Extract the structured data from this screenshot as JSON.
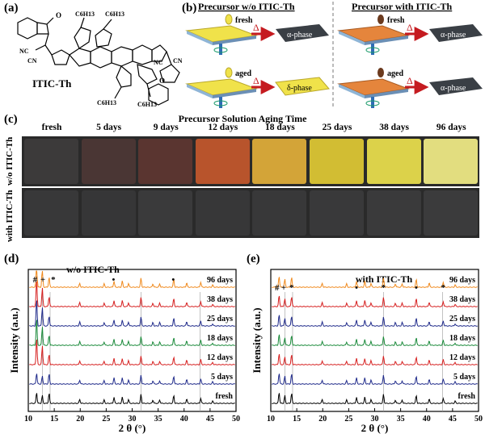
{
  "panels": {
    "a": "(a)",
    "b": "(b)",
    "c": "(c)",
    "d": "(d)",
    "e": "(e)"
  },
  "molecule": {
    "name": "ITIC-Th",
    "sub_labels": [
      "C6H13",
      "C6H13",
      "C6H13",
      "C6H13"
    ],
    "end_groups": [
      "NC",
      "CN"
    ]
  },
  "schematic": {
    "left_header": "Precursor w/o ITIC-Th",
    "right_header": "Precursor with ITIC-Th",
    "fresh": "fresh",
    "aged": "aged",
    "delta": "Δ",
    "results_left": [
      "α-phase",
      "δ-phase"
    ],
    "results_right": [
      "α-phase",
      "α-phase"
    ],
    "colors": {
      "yellow_film": "#f0e24a",
      "orange_film": "#e5853c",
      "alpha_dark": "#3a3f45",
      "delta_yellow": "#f0e24a",
      "arrow_red": "#c51b20",
      "spin_blue": "#2f6cb5"
    }
  },
  "aging": {
    "title": "Precursor Solution Aging Time",
    "days": [
      "fresh",
      "5 days",
      "9 days",
      "12 days",
      "18 days",
      "25 days",
      "38 days",
      "96 days"
    ],
    "row_labels": [
      "w/o ITIC-Th",
      "with ITIC-Th"
    ],
    "top_colors": [
      "#3c3a3a",
      "#4a3634",
      "#5a3530",
      "#b8542c",
      "#d3a438",
      "#d2bd33",
      "#dcd24a",
      "#e2dd7f"
    ],
    "bottom_colors": [
      "#383839",
      "#363637",
      "#3a3a3b",
      "#373738",
      "#383839",
      "#39393a",
      "#3a3a3b",
      "#3b3b3c"
    ]
  },
  "chart_data": [
    {
      "type": "line",
      "title": "w/o ITIC-Th",
      "xlabel": "2 θ (°)",
      "ylabel": "Intensity (a.u.)",
      "xlim": [
        10,
        50
      ],
      "xticks": [
        "10",
        "15",
        "20",
        "25",
        "30",
        "35",
        "40",
        "45",
        "50"
      ],
      "grid": false,
      "series": [
        {
          "name": "fresh",
          "color": "#000000"
        },
        {
          "name": "5 days",
          "color": "#1f2a8a"
        },
        {
          "name": "12 days",
          "color": "#d61f1f"
        },
        {
          "name": "18 days",
          "color": "#1a8a3a"
        },
        {
          "name": "25 days",
          "color": "#1f2a8a"
        },
        {
          "name": "38 days",
          "color": "#d61f1f"
        },
        {
          "name": "96 days",
          "color": "#f08a1e"
        }
      ],
      "annotations": [
        "#",
        "+",
        "*",
        "•",
        "•"
      ]
    },
    {
      "type": "line",
      "title": "with ITIC-Th",
      "xlabel": "2 θ (°)",
      "ylabel": "Intensity (a.u.)",
      "xlim": [
        10,
        50
      ],
      "xticks": [
        "10",
        "15",
        "20",
        "25",
        "30",
        "35",
        "40",
        "45",
        "50"
      ],
      "grid": false,
      "series": [
        {
          "name": "fresh",
          "color": "#000000"
        },
        {
          "name": "5 days",
          "color": "#1f2a8a"
        },
        {
          "name": "12 days",
          "color": "#d61f1f"
        },
        {
          "name": "18 days",
          "color": "#1a8a3a"
        },
        {
          "name": "25 days",
          "color": "#1f2a8a"
        },
        {
          "name": "38 days",
          "color": "#d61f1f"
        },
        {
          "name": "96 days",
          "color": "#f08a1e"
        }
      ],
      "annotations": [
        "#",
        "+",
        "*",
        "•",
        "*",
        "•",
        "*"
      ]
    }
  ]
}
